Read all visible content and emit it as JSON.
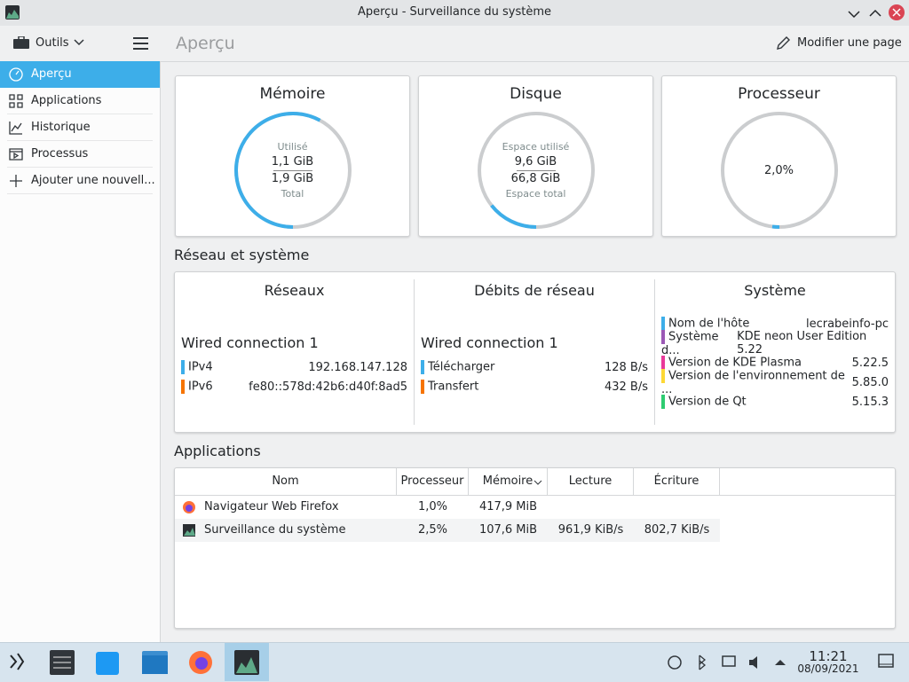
{
  "window": {
    "title": "Aperçu - Surveillance du système"
  },
  "toolbar": {
    "tools": "Outils",
    "page_title": "Aperçu",
    "edit_page": "Modifier une page"
  },
  "sidebar": {
    "items": [
      "Aperçu",
      "Applications",
      "Historique",
      "Processus",
      "Ajouter une nouvell..."
    ],
    "selected": 0
  },
  "gauges": [
    {
      "title": "Mémoire",
      "top_label": "Utilisé",
      "value": 1.1,
      "value_label": "1,1 GiB",
      "total": 1.9,
      "total_label": "1,9 GiB",
      "bottom_label": "Total"
    },
    {
      "title": "Disque",
      "top_label": "Espace utilisé",
      "value": 9.6,
      "value_label": "9,6 GiB",
      "total": 66.8,
      "total_label": "66,8 GiB",
      "bottom_label": "Espace total"
    },
    {
      "title": "Processeur",
      "value": 2.0,
      "value_label": "2,0%",
      "total": 100
    }
  ],
  "network_section": {
    "title": "Réseau et système",
    "networks": {
      "title": "Réseaux",
      "connection": "Wired connection 1",
      "rows": [
        {
          "label": "IPv4",
          "value": "192.168.147.128",
          "color": "#3daee9"
        },
        {
          "label": "IPv6",
          "value": "fe80::578d:42b6:d40f:8ad5",
          "color": "#f67400"
        }
      ]
    },
    "rates": {
      "title": "Débits de réseau",
      "connection": "Wired connection 1",
      "rows": [
        {
          "label": "Télécharger",
          "value": "128 B/s",
          "color": "#3daee9"
        },
        {
          "label": "Transfert",
          "value": "432 B/s",
          "color": "#f67400"
        }
      ]
    },
    "system": {
      "title": "Système",
      "rows": [
        {
          "label": "Nom de l'hôte",
          "value": "lecrabeinfo-pc",
          "color": "#3daee9"
        },
        {
          "label": "Système d...",
          "value": "KDE neon User Edition 5.22",
          "color": "#9b59b6"
        },
        {
          "label": "Version de KDE Plasma",
          "value": "5.22.5",
          "color": "#e93a9a"
        },
        {
          "label": "Version de l'environnement de ...",
          "value": "5.85.0",
          "color": "#fdd835"
        },
        {
          "label": "Version de Qt",
          "value": "5.15.3",
          "color": "#2ecc71"
        }
      ]
    }
  },
  "applications": {
    "title": "Applications",
    "columns": [
      "Nom",
      "Processeur",
      "Mémoire",
      "Lecture",
      "Écriture"
    ],
    "rows": [
      [
        "Navigateur Web Firefox",
        "1,0%",
        "417,9 MiB",
        "",
        ""
      ],
      [
        "Surveillance du système",
        "2,5%",
        "107,6 MiB",
        "961,9 KiB/s",
        "802,7 KiB/s"
      ]
    ]
  },
  "taskbar": {
    "time": "11:21",
    "date": "08/09/2021"
  }
}
